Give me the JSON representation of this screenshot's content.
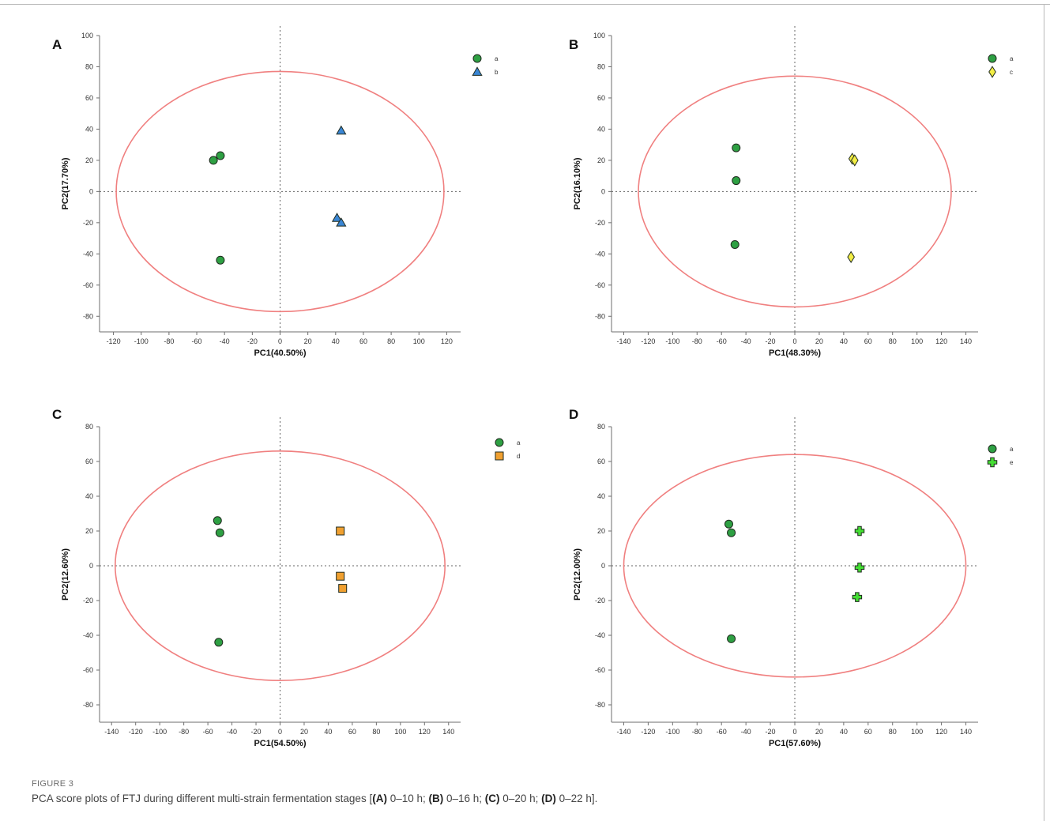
{
  "figure": {
    "label": "FIGURE 3",
    "caption": {
      "pre": "PCA score plots of FTJ during different multi-strain fermentation stages [",
      "parts": [
        {
          "letter": "(A)",
          "text": " 0–10 h; "
        },
        {
          "letter": "(B)",
          "text": " 0–16 h; "
        },
        {
          "letter": "(C)",
          "text": " 0–20 h; "
        },
        {
          "letter": "(D)",
          "text": " 0–22 h"
        }
      ],
      "post": "]."
    }
  },
  "chart_data": [
    {
      "type": "scatter",
      "panel": "A",
      "xlabel": "PC1(40.50%)",
      "ylabel": "PC2(17.70%)",
      "xlim": [
        -130,
        130
      ],
      "ylim": [
        -90,
        100
      ],
      "xticks": [
        -120,
        -100,
        -80,
        -60,
        -40,
        -20,
        0,
        20,
        40,
        60,
        80,
        100,
        120
      ],
      "yticks": [
        -80,
        -60,
        -40,
        -20,
        0,
        20,
        40,
        60,
        80,
        100
      ],
      "grid": false,
      "legend": "top-right",
      "ellipse": {
        "rx": 118,
        "ry": 77
      },
      "series": [
        {
          "name": "a",
          "marker": "circle",
          "color": "#2ea043",
          "points": [
            [
              -48,
              20
            ],
            [
              -43,
              23
            ],
            [
              -43,
              -44
            ]
          ]
        },
        {
          "name": "b",
          "marker": "triangle",
          "color": "#3a86d4",
          "points": [
            [
              44,
              39
            ],
            [
              41,
              -17
            ],
            [
              44,
              -20
            ]
          ]
        }
      ]
    },
    {
      "type": "scatter",
      "panel": "B",
      "xlabel": "PC1(48.30%)",
      "ylabel": "PC2(16.10%)",
      "xlim": [
        -150,
        150
      ],
      "ylim": [
        -90,
        100
      ],
      "xticks": [
        -140,
        -120,
        -100,
        -80,
        -60,
        -40,
        -20,
        0,
        20,
        40,
        60,
        80,
        100,
        120,
        140
      ],
      "yticks": [
        -80,
        -60,
        -40,
        -20,
        0,
        20,
        40,
        60,
        80,
        100
      ],
      "grid": false,
      "legend": "top-right",
      "ellipse": {
        "rx": 128,
        "ry": 74
      },
      "series": [
        {
          "name": "a",
          "marker": "circle",
          "color": "#2ea043",
          "points": [
            [
              -48,
              28
            ],
            [
              -48,
              7
            ],
            [
              -49,
              -34
            ]
          ]
        },
        {
          "name": "c",
          "marker": "diamond",
          "color": "#f3ee45",
          "points": [
            [
              47,
              21
            ],
            [
              49,
              20
            ],
            [
              46,
              -42
            ]
          ]
        }
      ]
    },
    {
      "type": "scatter",
      "panel": "C",
      "xlabel": "PC1(54.50%)",
      "ylabel": "PC2(12.60%)",
      "xlim": [
        -150,
        150
      ],
      "ylim": [
        -90,
        80
      ],
      "xticks": [
        -140,
        -120,
        -100,
        -80,
        -60,
        -40,
        -20,
        0,
        20,
        40,
        60,
        80,
        100,
        120,
        140
      ],
      "yticks": [
        -80,
        -60,
        -40,
        -20,
        0,
        20,
        40,
        60,
        80
      ],
      "grid": false,
      "legend": "top-right",
      "ellipse": {
        "rx": 137,
        "ry": 66
      },
      "series": [
        {
          "name": "a",
          "marker": "circle",
          "color": "#2ea043",
          "points": [
            [
              -52,
              26
            ],
            [
              -50,
              19
            ],
            [
              -51,
              -44
            ]
          ]
        },
        {
          "name": "d",
          "marker": "square",
          "color": "#f0a030",
          "points": [
            [
              50,
              20
            ],
            [
              50,
              -6
            ],
            [
              52,
              -13
            ]
          ]
        }
      ]
    },
    {
      "type": "scatter",
      "panel": "D",
      "xlabel": "PC1(57.60%)",
      "ylabel": "PC2(12.00%)",
      "xlim": [
        -150,
        150
      ],
      "ylim": [
        -90,
        80
      ],
      "xticks": [
        -140,
        -120,
        -100,
        -80,
        -60,
        -40,
        -20,
        0,
        20,
        40,
        60,
        80,
        100,
        120,
        140
      ],
      "yticks": [
        -80,
        -60,
        -40,
        -20,
        0,
        20,
        40,
        60,
        80
      ],
      "grid": false,
      "legend": "top-right",
      "ellipse": {
        "rx": 140,
        "ry": 64
      },
      "series": [
        {
          "name": "a",
          "marker": "circle",
          "color": "#2ea043",
          "points": [
            [
              -54,
              24
            ],
            [
              -52,
              19
            ],
            [
              -52,
              -42
            ]
          ]
        },
        {
          "name": "e",
          "marker": "cross",
          "color": "#44dd33",
          "points": [
            [
              53,
              20
            ],
            [
              53,
              -1
            ],
            [
              51,
              -18
            ]
          ]
        }
      ]
    }
  ]
}
